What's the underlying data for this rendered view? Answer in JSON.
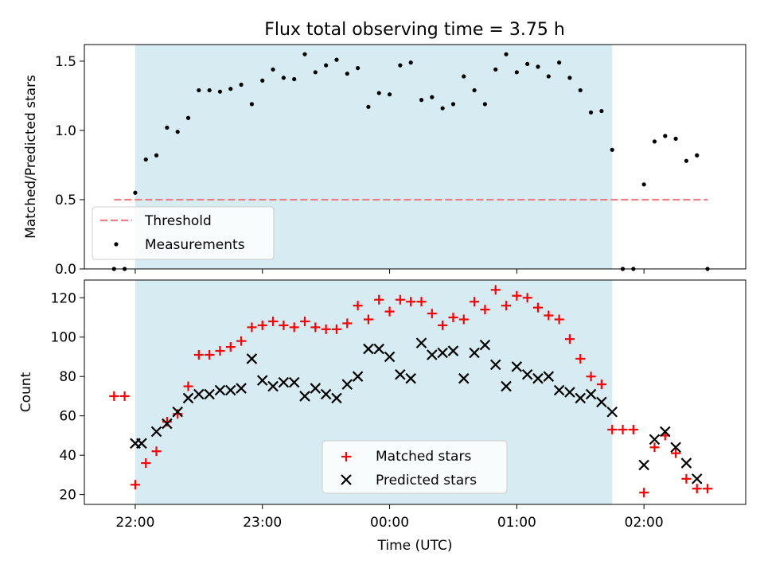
{
  "chart_data": [
    {
      "type": "scatter",
      "title": "Flux total observing time = 3.75 h",
      "xlabel": "",
      "ylabel": "Matched/Predicted stars",
      "xlim": [
        "21:36",
        "02:48"
      ],
      "ylim": [
        0,
        1.62
      ],
      "yticks": [
        0.0,
        0.5,
        1.0,
        1.5
      ],
      "ytick_labels": [
        "0.0",
        "0.5",
        "1.0",
        "1.5"
      ],
      "xticks": [
        "22:00",
        "23:00",
        "00:00",
        "01:00",
        "02:00"
      ],
      "shaded_interval": [
        "22:00",
        "01:45"
      ],
      "shade_color": "#add8e6",
      "threshold": {
        "name": "Threshold",
        "y": 0.5,
        "x_range": [
          "21:50",
          "02:30"
        ],
        "color": "#f08080",
        "style": "dashed"
      },
      "legend": {
        "position": "lower-left",
        "entries": [
          "Threshold",
          "Measurements"
        ]
      },
      "series": [
        {
          "name": "Measurements",
          "marker": "dot",
          "color": "#000000",
          "x": [
            "21:50",
            "21:55",
            "22:00",
            "22:05",
            "22:10",
            "22:15",
            "22:20",
            "22:25",
            "22:30",
            "22:35",
            "22:40",
            "22:45",
            "22:50",
            "22:55",
            "23:00",
            "23:05",
            "23:10",
            "23:15",
            "23:20",
            "23:25",
            "23:30",
            "23:35",
            "23:40",
            "23:45",
            "23:50",
            "23:55",
            "00:00",
            "00:05",
            "00:10",
            "00:15",
            "00:20",
            "00:25",
            "00:30",
            "00:35",
            "00:40",
            "00:45",
            "00:50",
            "00:55",
            "01:00",
            "01:05",
            "01:10",
            "01:15",
            "01:20",
            "01:25",
            "01:30",
            "01:35",
            "01:40",
            "01:45",
            "01:50",
            "01:55",
            "02:00",
            "02:05",
            "02:10",
            "02:15",
            "02:20",
            "02:25",
            "02:30"
          ],
          "y": [
            0.0,
            0.0,
            0.55,
            0.79,
            0.82,
            1.02,
            0.99,
            1.09,
            1.29,
            1.29,
            1.28,
            1.3,
            1.33,
            1.19,
            1.36,
            1.44,
            1.38,
            1.37,
            1.55,
            1.42,
            1.47,
            1.51,
            1.41,
            1.45,
            1.17,
            1.27,
            1.26,
            1.47,
            1.49,
            1.22,
            1.24,
            1.16,
            1.19,
            1.39,
            1.29,
            1.19,
            1.44,
            1.55,
            1.42,
            1.48,
            1.46,
            1.39,
            1.49,
            1.38,
            1.29,
            1.13,
            1.14,
            0.86,
            0.0,
            0.0,
            0.61,
            0.92,
            0.96,
            0.94,
            0.78,
            0.82,
            0.0
          ]
        }
      ]
    },
    {
      "type": "scatter",
      "title": "",
      "xlabel": "Time (UTC)",
      "ylabel": "Count",
      "xlim": [
        "21:36",
        "02:48"
      ],
      "ylim": [
        15,
        129
      ],
      "yticks": [
        20,
        40,
        60,
        80,
        100,
        120
      ],
      "ytick_labels": [
        "20",
        "40",
        "60",
        "80",
        "100",
        "120"
      ],
      "xticks": [
        "22:00",
        "23:00",
        "00:00",
        "01:00",
        "02:00"
      ],
      "xtick_labels": [
        "22:00",
        "23:00",
        "00:00",
        "01:00",
        "02:00"
      ],
      "shaded_interval": [
        "22:00",
        "01:45"
      ],
      "shade_color": "#add8e6",
      "legend": {
        "position": "lower-center",
        "entries": [
          "Matched stars",
          "Predicted stars"
        ]
      },
      "series": [
        {
          "name": "Matched stars",
          "marker": "plus",
          "color": "#ff0000",
          "x": [
            "21:50",
            "21:55",
            "22:00",
            "22:05",
            "22:10",
            "22:15",
            "22:20",
            "22:25",
            "22:30",
            "22:35",
            "22:40",
            "22:45",
            "22:50",
            "22:55",
            "23:00",
            "23:05",
            "23:10",
            "23:15",
            "23:20",
            "23:25",
            "23:30",
            "23:35",
            "23:40",
            "23:45",
            "23:50",
            "23:55",
            "00:00",
            "00:05",
            "00:10",
            "00:15",
            "00:20",
            "00:25",
            "00:30",
            "00:35",
            "00:40",
            "00:45",
            "00:50",
            "00:55",
            "01:00",
            "01:05",
            "01:10",
            "01:15",
            "01:20",
            "01:25",
            "01:30",
            "01:35",
            "01:40",
            "01:45",
            "01:50",
            "01:55",
            "02:00",
            "02:05",
            "02:10",
            "02:15",
            "02:20",
            "02:25",
            "02:30"
          ],
          "y": [
            70,
            70,
            25,
            36,
            42,
            57,
            61,
            75,
            91,
            91,
            93,
            95,
            98,
            105,
            106,
            108,
            106,
            105,
            108,
            105,
            104,
            104,
            107,
            116,
            109,
            119,
            113,
            119,
            118,
            118,
            112,
            106,
            110,
            109,
            118,
            114,
            124,
            116,
            121,
            120,
            115,
            111,
            109,
            99,
            89,
            80,
            76,
            53,
            53,
            53,
            21,
            44,
            50,
            41,
            28,
            23,
            23
          ]
        },
        {
          "name": "Predicted stars",
          "marker": "x",
          "color": "#000000",
          "x": [
            "22:00",
            "22:03",
            "22:10",
            "22:15",
            "22:20",
            "22:25",
            "22:30",
            "22:35",
            "22:40",
            "22:45",
            "22:50",
            "22:55",
            "23:00",
            "23:05",
            "23:10",
            "23:15",
            "23:20",
            "23:25",
            "23:30",
            "23:35",
            "23:40",
            "23:45",
            "23:50",
            "23:55",
            "00:00",
            "00:05",
            "00:10",
            "00:15",
            "00:20",
            "00:25",
            "00:30",
            "00:35",
            "00:40",
            "00:45",
            "00:50",
            "00:55",
            "01:00",
            "01:05",
            "01:10",
            "01:15",
            "01:20",
            "01:25",
            "01:30",
            "01:35",
            "01:40",
            "01:45",
            "02:00",
            "02:05",
            "02:10",
            "02:15",
            "02:20",
            "02:25"
          ],
          "y": [
            46,
            46,
            52,
            56,
            62,
            69,
            71,
            71,
            73,
            73,
            74,
            89,
            78,
            75,
            77,
            77,
            70,
            74,
            71,
            69,
            76,
            80,
            94,
            94,
            90,
            81,
            79,
            97,
            91,
            92,
            93,
            79,
            92,
            96,
            86,
            75,
            85,
            81,
            79,
            80,
            73,
            72,
            69,
            71,
            67,
            62,
            35,
            48,
            52,
            44,
            36,
            28
          ]
        }
      ]
    }
  ]
}
